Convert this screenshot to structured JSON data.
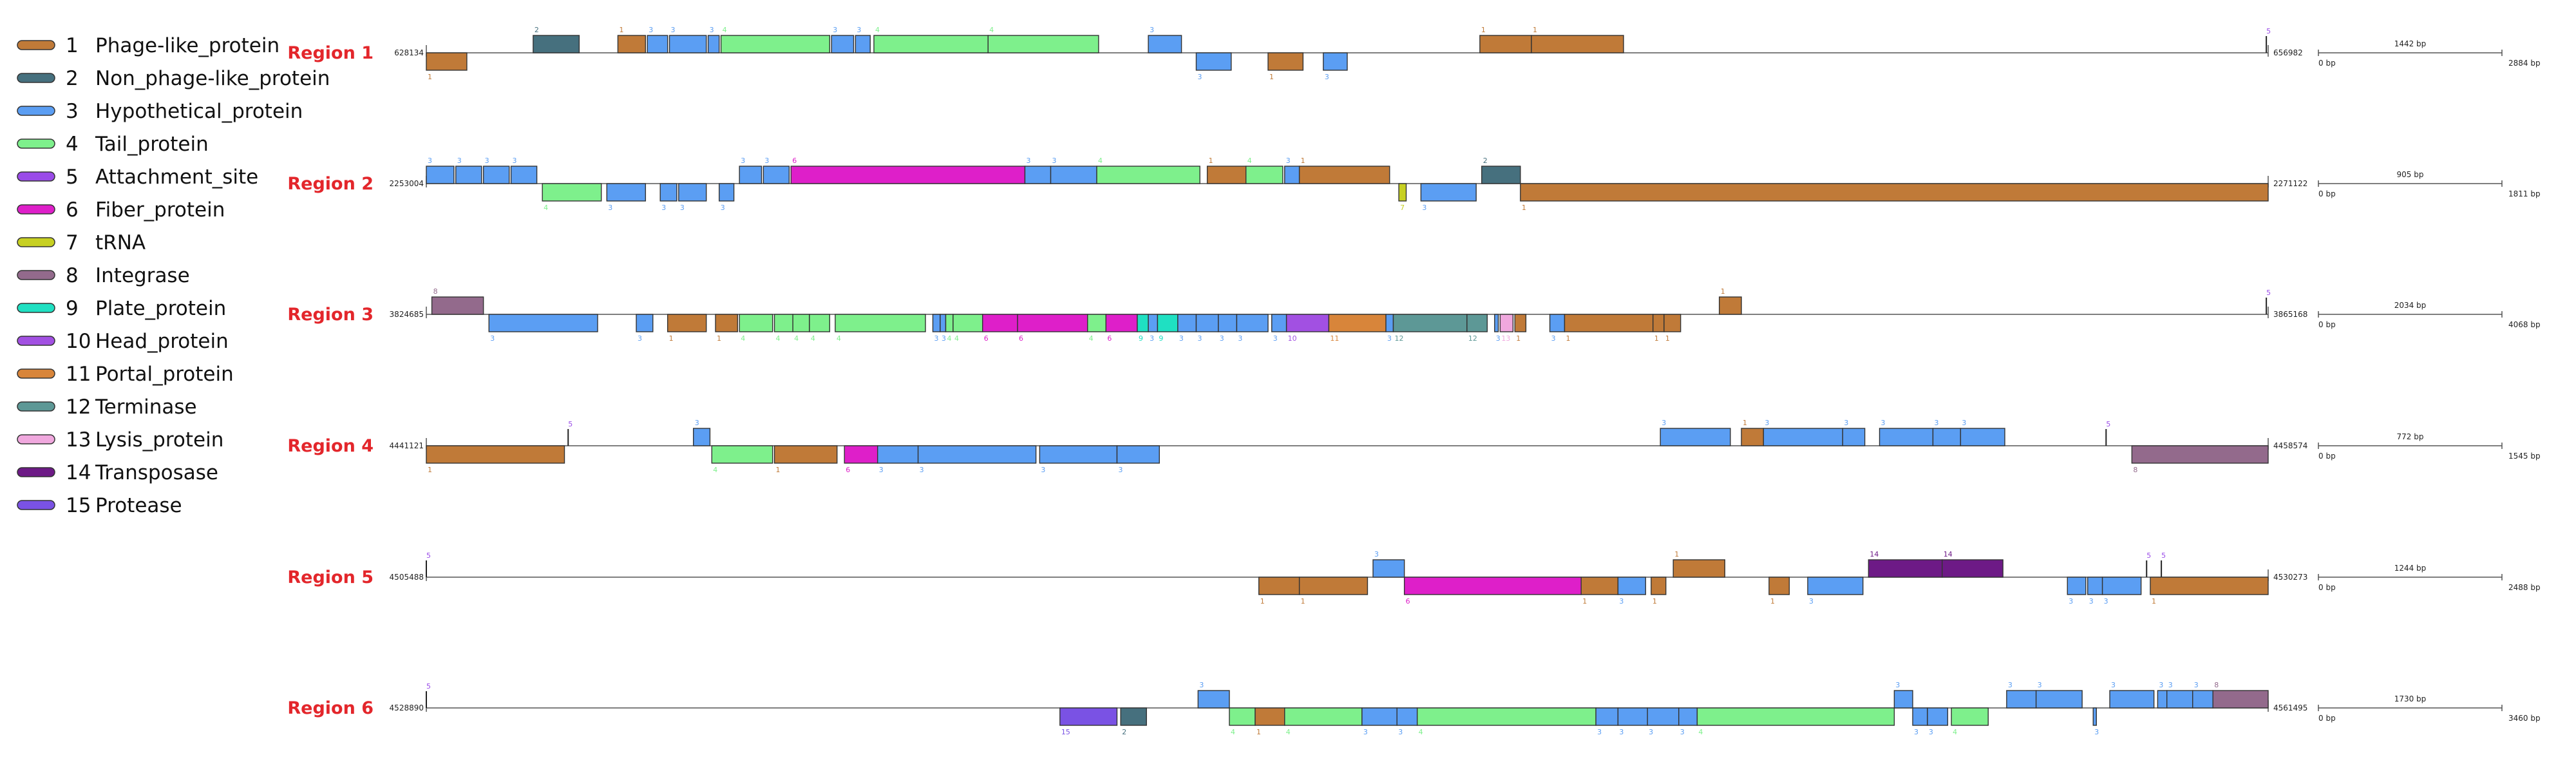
{
  "legend": [
    {
      "num": "1",
      "name": "Phage-like_protein",
      "color": "#c07a38"
    },
    {
      "num": "2",
      "name": "Non_phage-like_protein",
      "color": "#46707e"
    },
    {
      "num": "3",
      "name": "Hypothetical_protein",
      "color": "#5b9ef3"
    },
    {
      "num": "4",
      "name": "Tail_protein",
      "color": "#7ef08c"
    },
    {
      "num": "5",
      "name": "Attachment_site",
      "color": "#9a4be8"
    },
    {
      "num": "6",
      "name": "Fiber_protein",
      "color": "#de1fc9"
    },
    {
      "num": "7",
      "name": "tRNA",
      "color": "#c7d022"
    },
    {
      "num": "8",
      "name": "Integrase",
      "color": "#936a8c"
    },
    {
      "num": "9",
      "name": "Plate_protein",
      "color": "#1fe0c2"
    },
    {
      "num": "10",
      "name": "Head_protein",
      "color": "#a250e2"
    },
    {
      "num": "11",
      "name": "Portal_protein",
      "color": "#d8853a"
    },
    {
      "num": "12",
      "name": "Terminase",
      "color": "#5d9896"
    },
    {
      "num": "13",
      "name": "Lysis_protein",
      "color": "#f0a8de"
    },
    {
      "num": "14",
      "name": "Transposase",
      "color": "#6d1a86"
    },
    {
      "num": "15",
      "name": "Protease",
      "color": "#7a52e4"
    }
  ],
  "regions": [
    {
      "title": "Region 1",
      "start_label": "628134",
      "end_label": "656982",
      "scale_label": "1442 bp",
      "scale_min": "0 bp",
      "scale_max": "2884 bp",
      "genes": [
        {
          "s": 0.0,
          "e": 0.022,
          "t": 1,
          "str": "-"
        },
        {
          "s": 0.058,
          "e": 0.083,
          "t": 2,
          "str": "+"
        },
        {
          "s": 0.104,
          "e": 0.119,
          "t": 1,
          "str": "+"
        },
        {
          "s": 0.12,
          "e": 0.131,
          "t": 3,
          "str": "+"
        },
        {
          "s": 0.132,
          "e": 0.152,
          "t": 3,
          "str": "+"
        },
        {
          "s": 0.153,
          "e": 0.159,
          "t": 3,
          "str": "+"
        },
        {
          "s": 0.16,
          "e": 0.219,
          "t": 4,
          "str": "+"
        },
        {
          "s": 0.22,
          "e": 0.232,
          "t": 3,
          "str": "+"
        },
        {
          "s": 0.233,
          "e": 0.241,
          "t": 3,
          "str": "+"
        },
        {
          "s": 0.243,
          "e": 0.305,
          "t": 4,
          "str": "+"
        },
        {
          "s": 0.305,
          "e": 0.365,
          "t": 4,
          "str": "+"
        },
        {
          "s": 0.392,
          "e": 0.41,
          "t": 3,
          "str": "+"
        },
        {
          "s": 0.418,
          "e": 0.437,
          "t": 3,
          "str": "-"
        },
        {
          "s": 0.457,
          "e": 0.476,
          "t": 1,
          "str": "-"
        },
        {
          "s": 0.487,
          "e": 0.5,
          "t": 3,
          "str": "-"
        },
        {
          "s": 0.572,
          "e": 0.6,
          "t": 1,
          "str": "+"
        },
        {
          "s": 0.6,
          "e": 0.65,
          "t": 1,
          "str": "+"
        },
        {
          "s": 0.999,
          "e": 1.0,
          "t": 5,
          "str": "+"
        }
      ]
    },
    {
      "title": "Region 2",
      "start_label": "2253004",
      "end_label": "2271122",
      "scale_label": "905 bp",
      "scale_min": "0 bp",
      "scale_max": "1811 bp",
      "genes": [
        {
          "s": 0.0,
          "e": 0.015,
          "t": 3,
          "str": "+"
        },
        {
          "s": 0.016,
          "e": 0.03,
          "t": 3,
          "str": "+"
        },
        {
          "s": 0.031,
          "e": 0.045,
          "t": 3,
          "str": "+"
        },
        {
          "s": 0.046,
          "e": 0.06,
          "t": 3,
          "str": "+"
        },
        {
          "s": 0.063,
          "e": 0.095,
          "t": 4,
          "str": "-"
        },
        {
          "s": 0.098,
          "e": 0.119,
          "t": 3,
          "str": "-"
        },
        {
          "s": 0.127,
          "e": 0.136,
          "t": 3,
          "str": "-"
        },
        {
          "s": 0.137,
          "e": 0.152,
          "t": 3,
          "str": "-"
        },
        {
          "s": 0.159,
          "e": 0.167,
          "t": 3,
          "str": "-"
        },
        {
          "s": 0.17,
          "e": 0.182,
          "t": 3,
          "str": "+"
        },
        {
          "s": 0.183,
          "e": 0.197,
          "t": 3,
          "str": "+"
        },
        {
          "s": 0.198,
          "e": 0.325,
          "t": 6,
          "str": "+"
        },
        {
          "s": 0.325,
          "e": 0.339,
          "t": 3,
          "str": "+"
        },
        {
          "s": 0.339,
          "e": 0.364,
          "t": 3,
          "str": "+"
        },
        {
          "s": 0.364,
          "e": 0.42,
          "t": 4,
          "str": "+"
        },
        {
          "s": 0.424,
          "e": 0.445,
          "t": 1,
          "str": "+"
        },
        {
          "s": 0.445,
          "e": 0.465,
          "t": 4,
          "str": "+"
        },
        {
          "s": 0.466,
          "e": 0.474,
          "t": 3,
          "str": "+"
        },
        {
          "s": 0.474,
          "e": 0.523,
          "t": 1,
          "str": "+"
        },
        {
          "s": 0.528,
          "e": 0.532,
          "t": 7,
          "str": "-"
        },
        {
          "s": 0.54,
          "e": 0.57,
          "t": 3,
          "str": "-"
        },
        {
          "s": 0.573,
          "e": 0.594,
          "t": 2,
          "str": "+"
        },
        {
          "s": 0.594,
          "e": 1.0,
          "t": 1,
          "str": "-"
        }
      ]
    },
    {
      "title": "Region 3",
      "start_label": "3824685",
      "end_label": "3865168",
      "scale_label": "2034 bp",
      "scale_min": "0 bp",
      "scale_max": "4068 bp",
      "genes": [
        {
          "s": 0.003,
          "e": 0.031,
          "t": 8,
          "str": "+"
        },
        {
          "s": 0.034,
          "e": 0.093,
          "t": 3,
          "str": "-"
        },
        {
          "s": 0.114,
          "e": 0.123,
          "t": 3,
          "str": "-"
        },
        {
          "s": 0.131,
          "e": 0.152,
          "t": 1,
          "str": "-"
        },
        {
          "s": 0.157,
          "e": 0.169,
          "t": 1,
          "str": "-"
        },
        {
          "s": 0.17,
          "e": 0.188,
          "t": 4,
          "str": "-"
        },
        {
          "s": 0.189,
          "e": 0.199,
          "t": 4,
          "str": "-"
        },
        {
          "s": 0.199,
          "e": 0.208,
          "t": 4,
          "str": "-"
        },
        {
          "s": 0.208,
          "e": 0.219,
          "t": 4,
          "str": "-"
        },
        {
          "s": 0.222,
          "e": 0.271,
          "t": 4,
          "str": "-"
        },
        {
          "s": 0.275,
          "e": 0.279,
          "t": 3,
          "str": "-"
        },
        {
          "s": 0.279,
          "e": 0.282,
          "t": 3,
          "str": "-"
        },
        {
          "s": 0.282,
          "e": 0.286,
          "t": 4,
          "str": "-"
        },
        {
          "s": 0.286,
          "e": 0.302,
          "t": 4,
          "str": "-"
        },
        {
          "s": 0.302,
          "e": 0.321,
          "t": 6,
          "str": "-"
        },
        {
          "s": 0.321,
          "e": 0.359,
          "t": 6,
          "str": "-"
        },
        {
          "s": 0.359,
          "e": 0.369,
          "t": 4,
          "str": "-"
        },
        {
          "s": 0.369,
          "e": 0.386,
          "t": 6,
          "str": "-"
        },
        {
          "s": 0.386,
          "e": 0.392,
          "t": 9,
          "str": "-"
        },
        {
          "s": 0.392,
          "e": 0.397,
          "t": 3,
          "str": "-"
        },
        {
          "s": 0.397,
          "e": 0.408,
          "t": 9,
          "str": "-"
        },
        {
          "s": 0.408,
          "e": 0.418,
          "t": 3,
          "str": "-"
        },
        {
          "s": 0.418,
          "e": 0.43,
          "t": 3,
          "str": "-"
        },
        {
          "s": 0.43,
          "e": 0.44,
          "t": 3,
          "str": "-"
        },
        {
          "s": 0.44,
          "e": 0.457,
          "t": 3,
          "str": "-"
        },
        {
          "s": 0.459,
          "e": 0.467,
          "t": 3,
          "str": "-"
        },
        {
          "s": 0.467,
          "e": 0.49,
          "t": 10,
          "str": "-"
        },
        {
          "s": 0.49,
          "e": 0.521,
          "t": 11,
          "str": "-"
        },
        {
          "s": 0.521,
          "e": 0.525,
          "t": 3,
          "str": "-"
        },
        {
          "s": 0.525,
          "e": 0.565,
          "t": 12,
          "str": "-"
        },
        {
          "s": 0.565,
          "e": 0.576,
          "t": 12,
          "str": "-"
        },
        {
          "s": 0.58,
          "e": 0.582,
          "t": 3,
          "str": "-"
        },
        {
          "s": 0.583,
          "e": 0.59,
          "t": 13,
          "str": "-"
        },
        {
          "s": 0.591,
          "e": 0.597,
          "t": 1,
          "str": "-"
        },
        {
          "s": 0.61,
          "e": 0.618,
          "t": 3,
          "str": "-"
        },
        {
          "s": 0.618,
          "e": 0.666,
          "t": 1,
          "str": "-"
        },
        {
          "s": 0.666,
          "e": 0.672,
          "t": 1,
          "str": "-"
        },
        {
          "s": 0.672,
          "e": 0.681,
          "t": 1,
          "str": "-"
        },
        {
          "s": 0.702,
          "e": 0.714,
          "t": 1,
          "str": "+"
        },
        {
          "s": 0.999,
          "e": 1.0,
          "t": 5,
          "str": "+"
        }
      ]
    },
    {
      "title": "Region 4",
      "start_label": "4441121",
      "end_label": "4458574",
      "scale_label": "772 bp",
      "scale_min": "0 bp",
      "scale_max": "1545 bp",
      "genes": [
        {
          "s": 0.0,
          "e": 0.075,
          "t": 1,
          "str": "-"
        },
        {
          "s": 0.077,
          "e": 0.078,
          "t": 5,
          "str": "+"
        },
        {
          "s": 0.145,
          "e": 0.154,
          "t": 3,
          "str": "+"
        },
        {
          "s": 0.155,
          "e": 0.188,
          "t": 4,
          "str": "-"
        },
        {
          "s": 0.189,
          "e": 0.223,
          "t": 1,
          "str": "-"
        },
        {
          "s": 0.227,
          "e": 0.245,
          "t": 6,
          "str": "-"
        },
        {
          "s": 0.245,
          "e": 0.267,
          "t": 3,
          "str": "-"
        },
        {
          "s": 0.267,
          "e": 0.331,
          "t": 3,
          "str": "-"
        },
        {
          "s": 0.333,
          "e": 0.375,
          "t": 3,
          "str": "-"
        },
        {
          "s": 0.375,
          "e": 0.398,
          "t": 3,
          "str": "-"
        },
        {
          "s": 0.67,
          "e": 0.708,
          "t": 3,
          "str": "+"
        },
        {
          "s": 0.714,
          "e": 0.726,
          "t": 1,
          "str": "+"
        },
        {
          "s": 0.726,
          "e": 0.769,
          "t": 3,
          "str": "+"
        },
        {
          "s": 0.769,
          "e": 0.781,
          "t": 3,
          "str": "+"
        },
        {
          "s": 0.789,
          "e": 0.818,
          "t": 3,
          "str": "+"
        },
        {
          "s": 0.818,
          "e": 0.833,
          "t": 3,
          "str": "+"
        },
        {
          "s": 0.833,
          "e": 0.857,
          "t": 3,
          "str": "+"
        },
        {
          "s": 0.912,
          "e": 0.913,
          "t": 5,
          "str": "+"
        },
        {
          "s": 0.926,
          "e": 1.0,
          "t": 8,
          "str": "-"
        }
      ]
    },
    {
      "title": "Region 5",
      "start_label": "4505488",
      "end_label": "4530273",
      "scale_label": "1244 bp",
      "scale_min": "0 bp",
      "scale_max": "2488 bp",
      "genes": [
        {
          "s": 0.0,
          "e": 0.001,
          "t": 5,
          "str": "+"
        },
        {
          "s": 0.452,
          "e": 0.474,
          "t": 1,
          "str": "-"
        },
        {
          "s": 0.474,
          "e": 0.511,
          "t": 1,
          "str": "-"
        },
        {
          "s": 0.514,
          "e": 0.531,
          "t": 3,
          "str": "+"
        },
        {
          "s": 0.531,
          "e": 0.627,
          "t": 6,
          "str": "-"
        },
        {
          "s": 0.627,
          "e": 0.647,
          "t": 1,
          "str": "-"
        },
        {
          "s": 0.647,
          "e": 0.662,
          "t": 3,
          "str": "-"
        },
        {
          "s": 0.665,
          "e": 0.673,
          "t": 1,
          "str": "-"
        },
        {
          "s": 0.677,
          "e": 0.705,
          "t": 1,
          "str": "+"
        },
        {
          "s": 0.729,
          "e": 0.74,
          "t": 1,
          "str": "-"
        },
        {
          "s": 0.75,
          "e": 0.78,
          "t": 3,
          "str": "-"
        },
        {
          "s": 0.783,
          "e": 0.823,
          "t": 14,
          "str": "+"
        },
        {
          "s": 0.823,
          "e": 0.856,
          "t": 14,
          "str": "+"
        },
        {
          "s": 0.891,
          "e": 0.901,
          "t": 3,
          "str": "-"
        },
        {
          "s": 0.902,
          "e": 0.91,
          "t": 3,
          "str": "-"
        },
        {
          "s": 0.91,
          "e": 0.931,
          "t": 3,
          "str": "-"
        },
        {
          "s": 0.934,
          "e": 0.935,
          "t": 5,
          "str": "+"
        },
        {
          "s": 0.942,
          "e": 0.943,
          "t": 5,
          "str": "+"
        },
        {
          "s": 0.936,
          "e": 1.0,
          "t": 1,
          "str": "-"
        }
      ]
    },
    {
      "title": "Region 6",
      "start_label": "4528890",
      "end_label": "4561495",
      "scale_label": "1730 bp",
      "scale_min": "0 bp",
      "scale_max": "3460 bp",
      "genes": [
        {
          "s": 0.0,
          "e": 0.001,
          "t": 5,
          "str": "+"
        },
        {
          "s": 0.344,
          "e": 0.375,
          "t": 15,
          "str": "-"
        },
        {
          "s": 0.377,
          "e": 0.391,
          "t": 2,
          "str": "-"
        },
        {
          "s": 0.419,
          "e": 0.436,
          "t": 3,
          "str": "+"
        },
        {
          "s": 0.436,
          "e": 0.45,
          "t": 4,
          "str": "-"
        },
        {
          "s": 0.45,
          "e": 0.466,
          "t": 1,
          "str": "-"
        },
        {
          "s": 0.466,
          "e": 0.508,
          "t": 4,
          "str": "-"
        },
        {
          "s": 0.508,
          "e": 0.527,
          "t": 3,
          "str": "-"
        },
        {
          "s": 0.527,
          "e": 0.538,
          "t": 3,
          "str": "-"
        },
        {
          "s": 0.538,
          "e": 0.635,
          "t": 4,
          "str": "-"
        },
        {
          "s": 0.635,
          "e": 0.647,
          "t": 3,
          "str": "-"
        },
        {
          "s": 0.647,
          "e": 0.663,
          "t": 3,
          "str": "-"
        },
        {
          "s": 0.663,
          "e": 0.68,
          "t": 3,
          "str": "-"
        },
        {
          "s": 0.68,
          "e": 0.69,
          "t": 3,
          "str": "-"
        },
        {
          "s": 0.69,
          "e": 0.797,
          "t": 4,
          "str": "-"
        },
        {
          "s": 0.797,
          "e": 0.807,
          "t": 3,
          "str": "+"
        },
        {
          "s": 0.807,
          "e": 0.815,
          "t": 3,
          "str": "-"
        },
        {
          "s": 0.815,
          "e": 0.826,
          "t": 3,
          "str": "-"
        },
        {
          "s": 0.828,
          "e": 0.848,
          "t": 4,
          "str": "-"
        },
        {
          "s": 0.858,
          "e": 0.874,
          "t": 3,
          "str": "+"
        },
        {
          "s": 0.874,
          "e": 0.899,
          "t": 3,
          "str": "+"
        },
        {
          "s": 0.905,
          "e": 0.906,
          "t": 3,
          "str": "-"
        },
        {
          "s": 0.914,
          "e": 0.938,
          "t": 3,
          "str": "+"
        },
        {
          "s": 0.94,
          "e": 0.945,
          "t": 3,
          "str": "+"
        },
        {
          "s": 0.945,
          "e": 0.959,
          "t": 3,
          "str": "+"
        },
        {
          "s": 0.959,
          "e": 0.97,
          "t": 3,
          "str": "+"
        },
        {
          "s": 0.97,
          "e": 1.0,
          "t": 8,
          "str": "+"
        }
      ]
    }
  ]
}
